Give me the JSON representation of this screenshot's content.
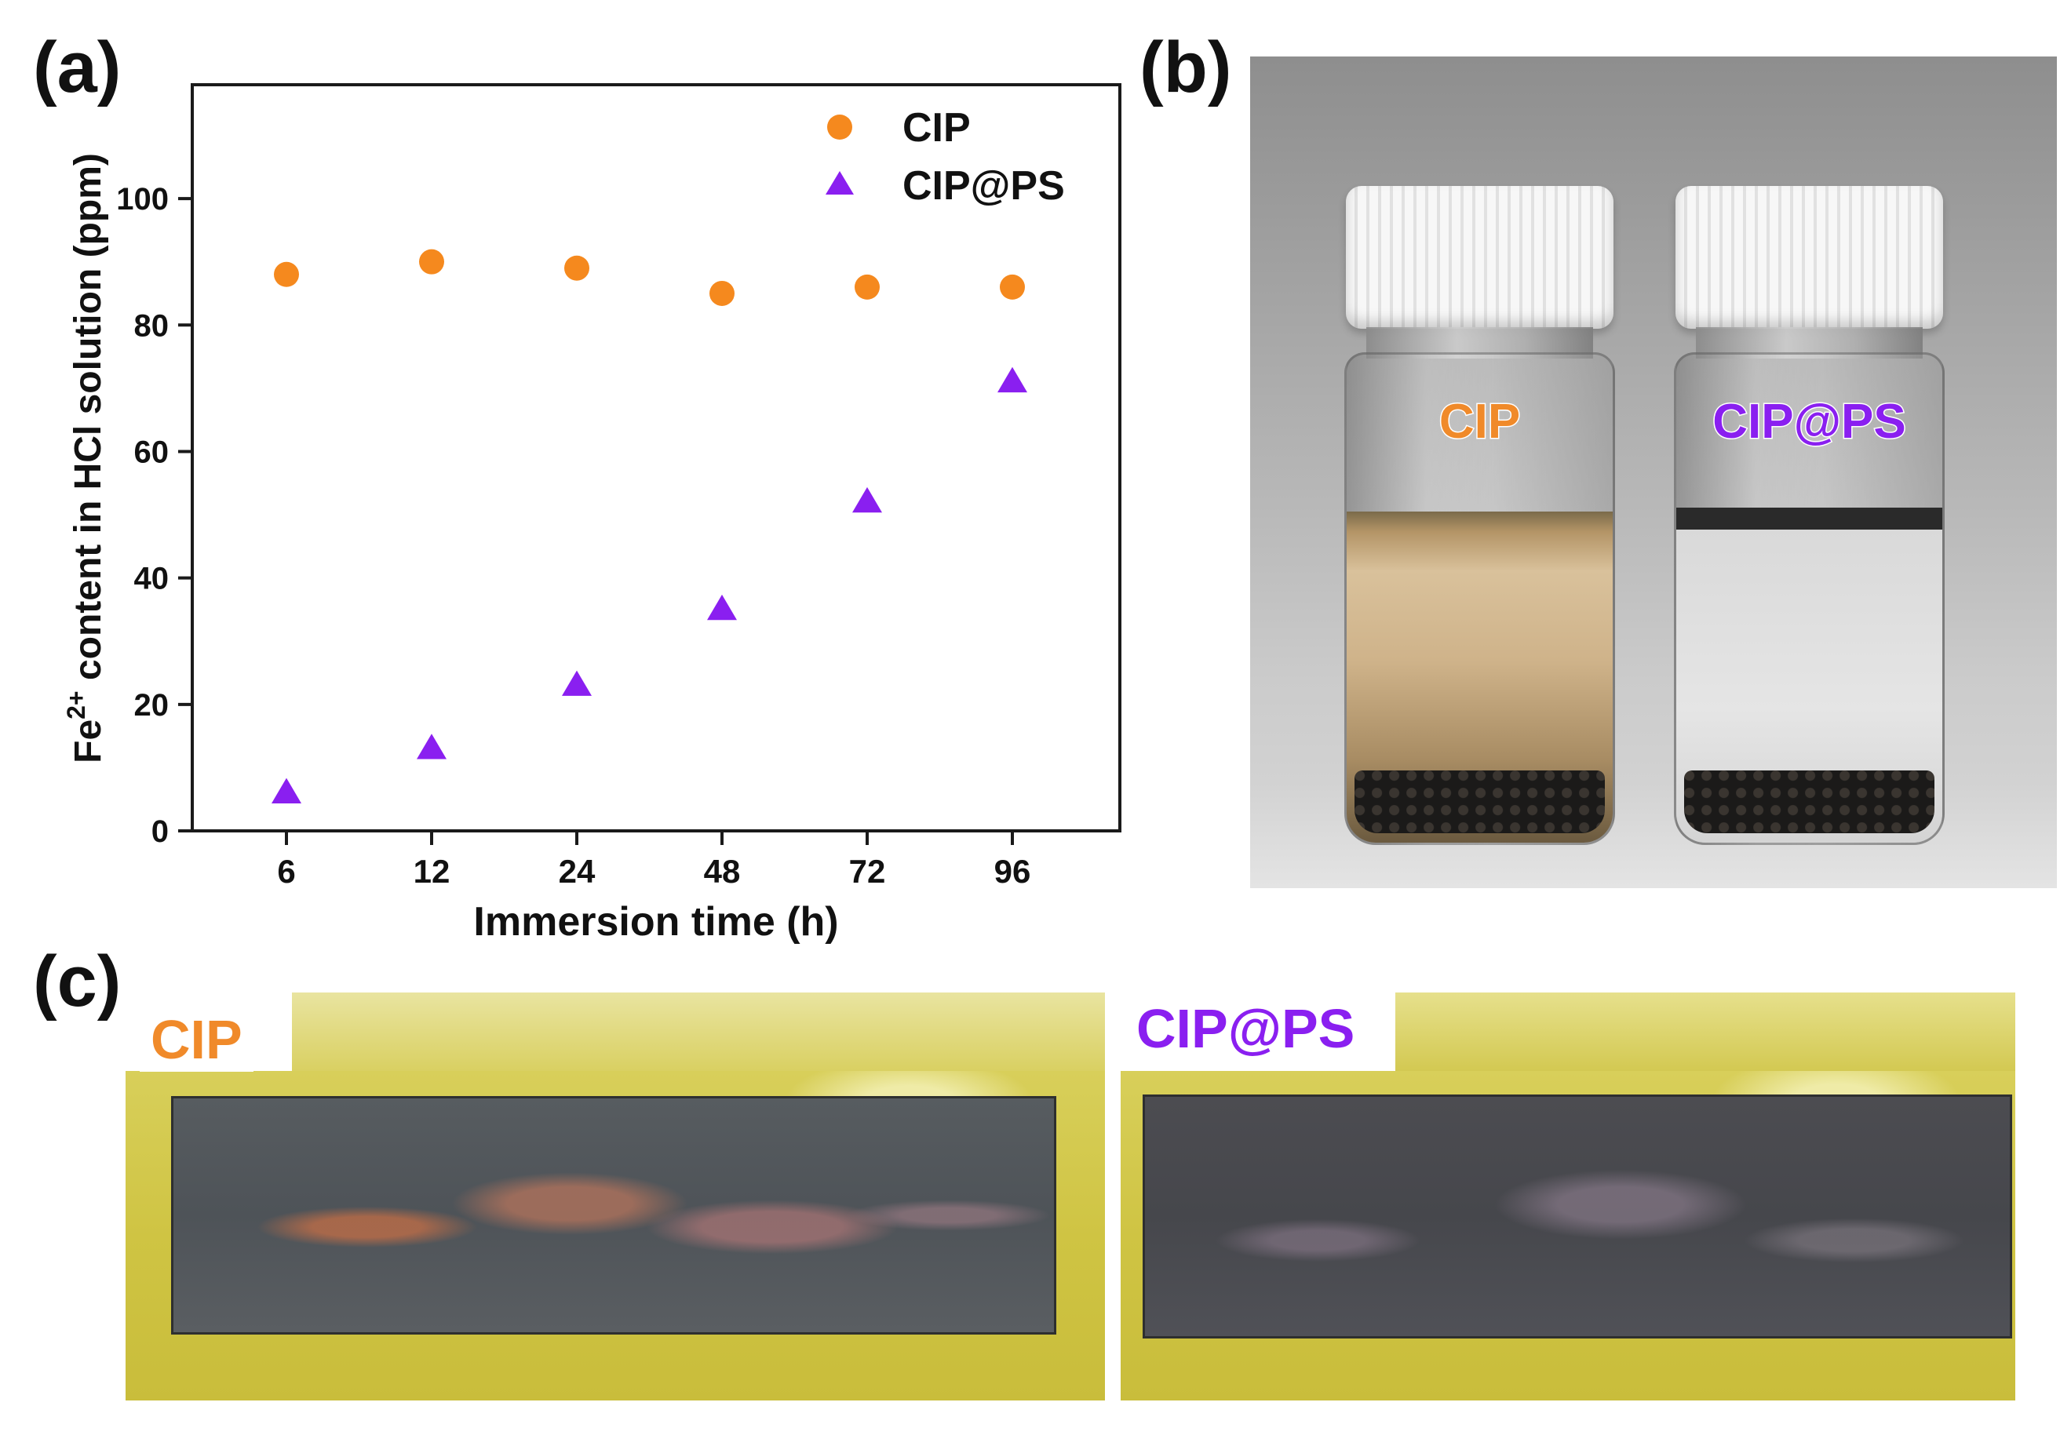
{
  "panels": {
    "a": "(a)",
    "b": "(b)",
    "c": "(c)"
  },
  "chart_data": {
    "type": "scatter",
    "title": "",
    "xlabel": "Immersion time (h)",
    "ylabel_parts": [
      "Fe",
      "2+",
      " content in HCl solution (ppm)"
    ],
    "categories": [
      "6",
      "12",
      "24",
      "48",
      "72",
      "96"
    ],
    "ylim": [
      0,
      118
    ],
    "yticks": [
      "0",
      "20",
      "40",
      "60",
      "80",
      "100"
    ],
    "legend_position": "top-right",
    "series": [
      {
        "name": "CIP",
        "marker": "circle",
        "color": "#f5891e",
        "values": [
          88,
          90,
          89,
          85,
          86,
          86
        ]
      },
      {
        "name": "CIP@PS",
        "marker": "triangle",
        "color": "#8a1ff0",
        "values": [
          6,
          13,
          23,
          35,
          52,
          71
        ]
      }
    ]
  },
  "photo_b": {
    "left_label": "CIP",
    "right_label": "CIP@PS",
    "left_color": "#f08a2a",
    "right_color": "#8a1ff0"
  },
  "photo_c": {
    "left_label": "CIP",
    "right_label": "CIP@PS",
    "left_color": "#f08a2a",
    "right_color": "#8a1ff0"
  }
}
